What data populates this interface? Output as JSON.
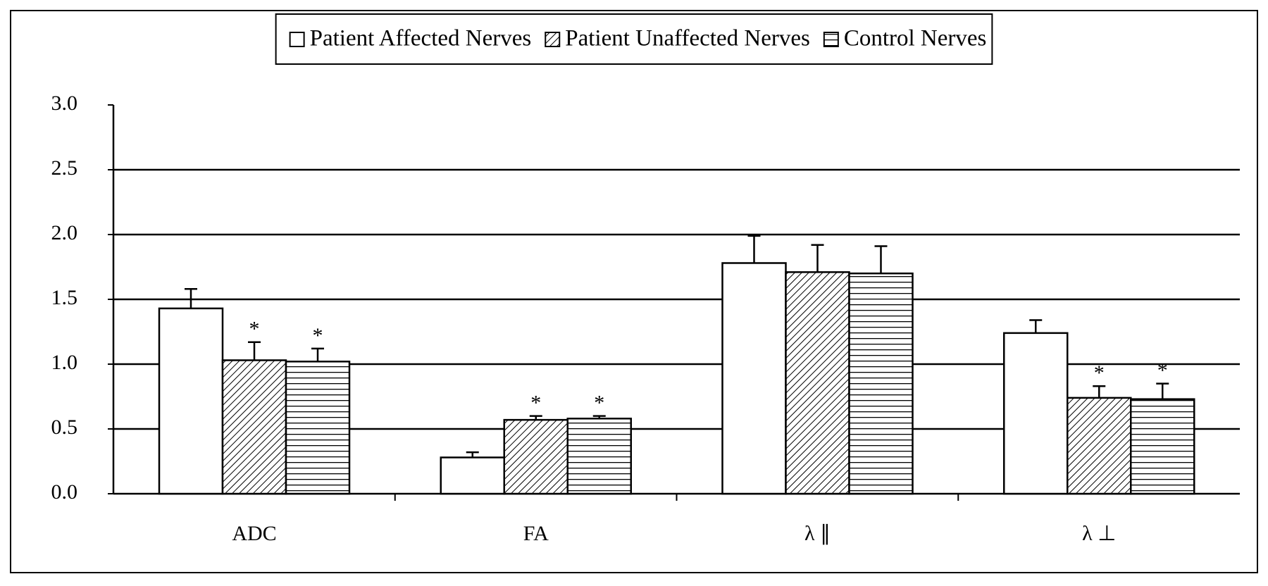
{
  "chart_data": {
    "type": "bar",
    "categories": [
      "ADC",
      "FA",
      "λ ∥",
      "λ ⊥"
    ],
    "series": [
      {
        "name": "Patient Affected Nerves",
        "color": "#ffffff",
        "pattern": "none",
        "values": [
          1.43,
          0.28,
          1.78,
          1.24
        ],
        "errors": [
          0.15,
          0.04,
          0.21,
          0.1
        ]
      },
      {
        "name": "Patient Unaffected Nerves",
        "color": "#ffffff",
        "pattern": "diagonal",
        "values": [
          1.03,
          0.57,
          1.71,
          0.74
        ],
        "errors": [
          0.14,
          0.03,
          0.21,
          0.09
        ],
        "marker_labels": [
          "*",
          "*",
          null,
          "*"
        ]
      },
      {
        "name": "Control Nerves",
        "color": "#ffffff",
        "pattern": "horizontal",
        "values": [
          1.02,
          0.58,
          1.7,
          0.73
        ],
        "errors": [
          0.1,
          0.02,
          0.21,
          0.12
        ],
        "marker_labels": [
          "*",
          "*",
          null,
          "*"
        ]
      }
    ],
    "ylim": [
      0,
      3
    ],
    "yticks": [
      {
        "value": 0,
        "label": "0.0"
      },
      0.5,
      {
        "value": 1,
        "label": "1.0"
      },
      1.5,
      {
        "value": 2,
        "label": "2.0"
      },
      2.5,
      {
        "value": 3,
        "label": "3.0"
      }
    ],
    "grid": true,
    "legend": "top"
  }
}
